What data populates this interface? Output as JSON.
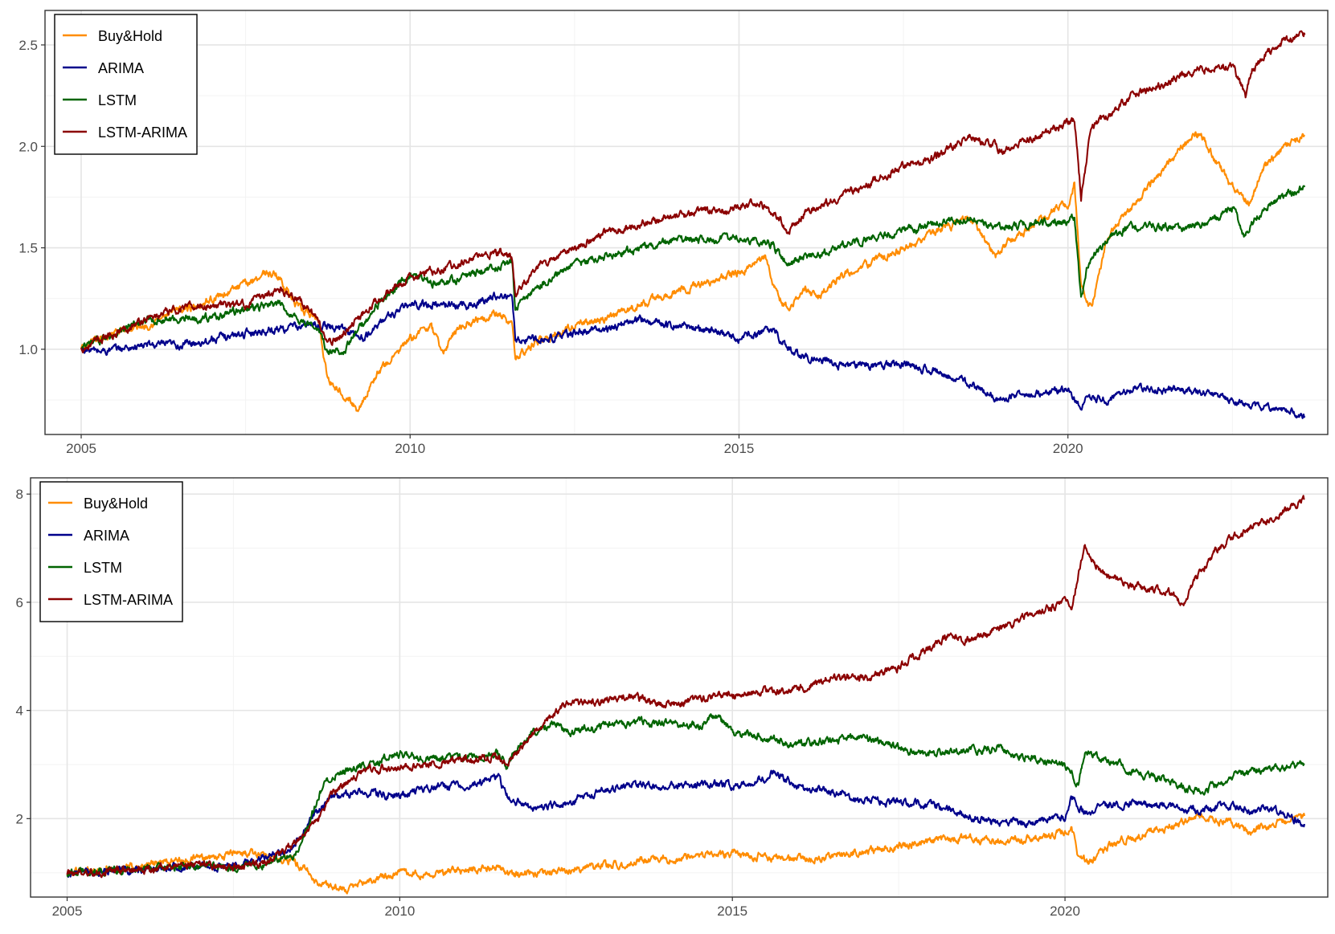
{
  "chart_data": [
    {
      "type": "line",
      "xlim": [
        2004.45,
        2023.95
      ],
      "ylim": [
        0.58,
        2.67
      ],
      "x_ticks": [
        2005,
        2010,
        2015,
        2020
      ],
      "x_tick_labels": [
        "2005",
        "2010",
        "2015",
        "2020"
      ],
      "y_ticks": [
        1.0,
        1.5,
        2.0,
        2.5
      ],
      "y_tick_labels": [
        "1.0",
        "1.5",
        "2.0",
        "2.5"
      ],
      "grid": true,
      "legend_position": "top-left",
      "series": [
        {
          "name": "Buy&Hold",
          "color": "#FF8C00",
          "x": [
            2005.0,
            2005.5,
            2006.0,
            2006.4,
            2006.6,
            2007.0,
            2007.5,
            2007.8,
            2008.0,
            2008.3,
            2008.6,
            2008.75,
            2009.0,
            2009.2,
            2009.5,
            2010.0,
            2010.3,
            2010.5,
            2010.7,
            2011.0,
            2011.3,
            2011.55,
            2011.6,
            2011.75,
            2012.0,
            2012.3,
            2012.5,
            2013.0,
            2013.5,
            2014.0,
            2014.5,
            2015.0,
            2015.4,
            2015.6,
            2015.75,
            2016.0,
            2016.2,
            2016.5,
            2017.0,
            2017.5,
            2018.0,
            2018.5,
            2018.9,
            2019.0,
            2019.5,
            2020.0,
            2020.1,
            2020.2,
            2020.35,
            2020.6,
            2021.0,
            2021.5,
            2021.9,
            2022.0,
            2022.3,
            2022.5,
            2022.75,
            2023.0,
            2023.3,
            2023.6
          ],
          "y": [
            1.0,
            1.08,
            1.12,
            1.18,
            1.2,
            1.25,
            1.32,
            1.38,
            1.36,
            1.2,
            1.15,
            0.85,
            0.78,
            0.7,
            0.88,
            1.05,
            1.12,
            0.98,
            1.1,
            1.15,
            1.18,
            1.12,
            0.95,
            1.0,
            1.05,
            1.08,
            1.12,
            1.15,
            1.22,
            1.28,
            1.33,
            1.38,
            1.45,
            1.25,
            1.2,
            1.3,
            1.25,
            1.35,
            1.42,
            1.5,
            1.58,
            1.65,
            1.45,
            1.5,
            1.62,
            1.72,
            1.82,
            1.3,
            1.2,
            1.55,
            1.72,
            1.9,
            2.05,
            2.07,
            1.9,
            1.8,
            1.72,
            1.9,
            2.0,
            2.05
          ]
        },
        {
          "name": "ARIMA",
          "color": "#00008B",
          "x": [
            2005.0,
            2005.3,
            2006.0,
            2006.5,
            2007.0,
            2007.5,
            2008.0,
            2008.5,
            2009.0,
            2009.3,
            2009.6,
            2010.0,
            2010.5,
            2011.0,
            2011.3,
            2011.55,
            2011.6,
            2012.0,
            2012.5,
            2013.0,
            2013.5,
            2014.0,
            2014.5,
            2015.0,
            2015.5,
            2015.7,
            2016.0,
            2016.3,
            2016.5,
            2017.0,
            2017.5,
            2018.0,
            2018.5,
            2018.9,
            2019.0,
            2019.5,
            2020.0,
            2020.2,
            2020.3,
            2020.6,
            2021.0,
            2021.5,
            2022.0,
            2022.5,
            2022.8,
            2023.0,
            2023.3,
            2023.6
          ],
          "y": [
            1.0,
            0.99,
            1.02,
            1.02,
            1.05,
            1.08,
            1.1,
            1.12,
            1.1,
            1.05,
            1.15,
            1.22,
            1.22,
            1.22,
            1.27,
            1.25,
            1.05,
            1.05,
            1.08,
            1.1,
            1.15,
            1.12,
            1.1,
            1.05,
            1.1,
            1.02,
            0.96,
            0.94,
            0.92,
            0.92,
            0.93,
            0.89,
            0.83,
            0.76,
            0.76,
            0.78,
            0.8,
            0.72,
            0.77,
            0.75,
            0.81,
            0.8,
            0.79,
            0.75,
            0.72,
            0.72,
            0.7,
            0.67
          ]
        },
        {
          "name": "LSTM",
          "color": "#006400",
          "x": [
            2005.0,
            2005.5,
            2006.0,
            2006.5,
            2007.0,
            2007.5,
            2008.0,
            2008.3,
            2008.6,
            2008.75,
            2009.0,
            2009.5,
            2010.0,
            2010.5,
            2011.0,
            2011.5,
            2011.55,
            2011.6,
            2012.0,
            2012.5,
            2013.0,
            2013.5,
            2014.0,
            2014.5,
            2015.0,
            2015.5,
            2015.75,
            2016.0,
            2016.5,
            2017.0,
            2017.5,
            2018.0,
            2018.5,
            2019.0,
            2019.5,
            2020.0,
            2020.1,
            2020.2,
            2020.3,
            2020.6,
            2020.8,
            2021.0,
            2021.6,
            2021.8,
            2022.0,
            2022.3,
            2022.5,
            2022.7,
            2022.8,
            2023.0,
            2023.3,
            2023.6
          ],
          "y": [
            1.0,
            1.08,
            1.14,
            1.15,
            1.16,
            1.2,
            1.22,
            1.15,
            1.1,
            0.98,
            1.0,
            1.22,
            1.36,
            1.32,
            1.38,
            1.42,
            1.44,
            1.2,
            1.32,
            1.42,
            1.46,
            1.5,
            1.53,
            1.54,
            1.55,
            1.52,
            1.42,
            1.45,
            1.5,
            1.55,
            1.58,
            1.62,
            1.65,
            1.6,
            1.62,
            1.63,
            1.65,
            1.25,
            1.42,
            1.55,
            1.58,
            1.6,
            1.6,
            1.59,
            1.62,
            1.65,
            1.7,
            1.55,
            1.62,
            1.7,
            1.76,
            1.8
          ]
        },
        {
          "name": "LSTM-ARIMA",
          "color": "#8B0000",
          "x": [
            2005.0,
            2005.5,
            2006.0,
            2006.5,
            2007.0,
            2007.5,
            2008.0,
            2008.3,
            2008.6,
            2008.75,
            2009.0,
            2009.5,
            2010.0,
            2010.5,
            2011.0,
            2011.4,
            2011.55,
            2011.6,
            2012.0,
            2012.5,
            2013.0,
            2013.5,
            2014.0,
            2014.5,
            2015.0,
            2015.3,
            2015.6,
            2015.75,
            2016.0,
            2016.3,
            2016.5,
            2017.0,
            2017.5,
            2018.0,
            2018.5,
            2018.9,
            2019.0,
            2019.5,
            2020.0,
            2020.1,
            2020.2,
            2020.35,
            2020.6,
            2021.0,
            2021.5,
            2022.0,
            2022.5,
            2022.7,
            2022.8,
            2023.0,
            2023.3,
            2023.6
          ],
          "y": [
            1.0,
            1.08,
            1.15,
            1.2,
            1.22,
            1.22,
            1.3,
            1.25,
            1.15,
            1.02,
            1.08,
            1.25,
            1.35,
            1.4,
            1.45,
            1.48,
            1.45,
            1.28,
            1.42,
            1.5,
            1.58,
            1.62,
            1.65,
            1.68,
            1.7,
            1.72,
            1.65,
            1.58,
            1.68,
            1.72,
            1.75,
            1.82,
            1.9,
            1.95,
            2.05,
            2.0,
            1.98,
            2.05,
            2.12,
            2.13,
            1.75,
            2.1,
            2.15,
            2.25,
            2.32,
            2.38,
            2.4,
            2.25,
            2.38,
            2.45,
            2.52,
            2.55
          ]
        }
      ]
    },
    {
      "type": "line",
      "xlim": [
        2004.45,
        2023.95
      ],
      "ylim": [
        0.55,
        8.3
      ],
      "x_ticks": [
        2005,
        2010,
        2015,
        2020
      ],
      "x_tick_labels": [
        "2005",
        "2010",
        "2015",
        "2020"
      ],
      "y_ticks": [
        2,
        4,
        6,
        8
      ],
      "y_tick_labels": [
        "2",
        "4",
        "6",
        "8"
      ],
      "grid": true,
      "legend_position": "top-left",
      "series": [
        {
          "name": "Buy&Hold",
          "color": "#FF8C00",
          "x": [
            2005.0,
            2005.5,
            2006.0,
            2006.5,
            2007.0,
            2007.5,
            2008.0,
            2008.4,
            2008.6,
            2008.8,
            2009.0,
            2009.2,
            2009.5,
            2010.0,
            2010.5,
            2011.0,
            2011.5,
            2011.6,
            2012.0,
            2012.5,
            2013.0,
            2013.5,
            2014.0,
            2014.5,
            2015.0,
            2015.5,
            2016.0,
            2016.5,
            2017.0,
            2017.5,
            2018.0,
            2018.5,
            2019.0,
            2019.5,
            2020.0,
            2020.1,
            2020.2,
            2020.35,
            2020.6,
            2021.0,
            2021.5,
            2022.0,
            2022.5,
            2022.8,
            2023.0,
            2023.3,
            2023.6
          ],
          "y": [
            1.0,
            1.05,
            1.12,
            1.2,
            1.28,
            1.35,
            1.32,
            1.2,
            1.05,
            0.8,
            0.75,
            0.7,
            0.85,
            1.0,
            1.0,
            1.05,
            1.1,
            0.95,
            1.0,
            1.05,
            1.12,
            1.2,
            1.25,
            1.32,
            1.35,
            1.3,
            1.25,
            1.3,
            1.4,
            1.5,
            1.6,
            1.65,
            1.55,
            1.65,
            1.75,
            1.82,
            1.3,
            1.2,
            1.45,
            1.65,
            1.85,
            2.05,
            1.95,
            1.75,
            1.85,
            1.95,
            2.05
          ]
        },
        {
          "name": "ARIMA",
          "color": "#00008B",
          "x": [
            2005.0,
            2005.5,
            2006.0,
            2006.5,
            2007.0,
            2007.5,
            2008.0,
            2008.4,
            2008.8,
            2009.0,
            2009.5,
            2010.0,
            2010.5,
            2011.0,
            2011.5,
            2011.6,
            2012.0,
            2012.5,
            2013.0,
            2013.5,
            2014.0,
            2014.5,
            2015.0,
            2015.5,
            2015.6,
            2016.0,
            2016.5,
            2017.0,
            2017.5,
            2018.0,
            2018.5,
            2019.0,
            2019.5,
            2020.0,
            2020.1,
            2020.3,
            2020.6,
            2021.0,
            2021.5,
            2022.0,
            2022.5,
            2022.8,
            2023.0,
            2023.3,
            2023.6
          ],
          "y": [
            1.0,
            1.02,
            1.05,
            1.1,
            1.12,
            1.12,
            1.3,
            1.5,
            2.2,
            2.4,
            2.5,
            2.4,
            2.6,
            2.6,
            2.75,
            2.4,
            2.2,
            2.3,
            2.5,
            2.65,
            2.6,
            2.65,
            2.6,
            2.75,
            2.85,
            2.6,
            2.5,
            2.35,
            2.3,
            2.25,
            2.05,
            1.9,
            1.95,
            2.0,
            2.4,
            2.1,
            2.25,
            2.3,
            2.25,
            2.15,
            2.25,
            2.15,
            2.2,
            2.1,
            1.9
          ]
        },
        {
          "name": "LSTM",
          "color": "#006400",
          "x": [
            2005.0,
            2005.5,
            2006.0,
            2006.5,
            2007.0,
            2007.5,
            2008.0,
            2008.4,
            2008.6,
            2008.8,
            2009.0,
            2009.5,
            2010.0,
            2010.5,
            2011.0,
            2011.5,
            2011.6,
            2012.0,
            2012.3,
            2012.5,
            2013.0,
            2013.5,
            2014.0,
            2014.5,
            2014.75,
            2015.0,
            2015.5,
            2016.0,
            2016.5,
            2017.0,
            2017.5,
            2018.0,
            2018.5,
            2019.0,
            2019.5,
            2020.0,
            2020.1,
            2020.2,
            2020.3,
            2020.6,
            2021.0,
            2021.5,
            2022.0,
            2022.3,
            2022.5,
            2023.0,
            2023.3,
            2023.6
          ],
          "y": [
            1.0,
            1.02,
            1.05,
            1.1,
            1.15,
            1.1,
            1.15,
            1.3,
            1.8,
            2.5,
            2.8,
            3.0,
            3.2,
            3.1,
            3.15,
            3.2,
            3.0,
            3.6,
            3.8,
            3.6,
            3.7,
            3.8,
            3.75,
            3.7,
            3.9,
            3.6,
            3.5,
            3.4,
            3.45,
            3.5,
            3.3,
            3.2,
            3.25,
            3.3,
            3.1,
            3.0,
            2.9,
            2.6,
            3.2,
            3.1,
            2.9,
            2.7,
            2.5,
            2.6,
            2.8,
            2.9,
            2.95,
            3.0
          ]
        },
        {
          "name": "LSTM-ARIMA",
          "color": "#8B0000",
          "x": [
            2005.0,
            2005.5,
            2006.0,
            2006.5,
            2007.0,
            2007.5,
            2008.0,
            2008.4,
            2008.6,
            2008.8,
            2009.0,
            2009.5,
            2010.0,
            2010.5,
            2011.0,
            2011.5,
            2011.6,
            2012.0,
            2012.3,
            2012.5,
            2013.0,
            2013.5,
            2014.0,
            2014.5,
            2015.0,
            2015.5,
            2016.0,
            2016.5,
            2017.0,
            2017.5,
            2018.0,
            2018.3,
            2018.5,
            2019.0,
            2019.5,
            2020.0,
            2020.1,
            2020.2,
            2020.3,
            2020.6,
            2021.0,
            2021.5,
            2021.8,
            2022.0,
            2022.3,
            2022.5,
            2023.0,
            2023.3,
            2023.6
          ],
          "y": [
            1.0,
            1.02,
            1.05,
            1.1,
            1.15,
            1.1,
            1.2,
            1.5,
            1.8,
            2.0,
            2.5,
            2.9,
            2.95,
            3.0,
            3.1,
            3.15,
            3.0,
            3.6,
            3.9,
            4.1,
            4.2,
            4.25,
            4.1,
            4.2,
            4.3,
            4.35,
            4.4,
            4.6,
            4.6,
            4.8,
            5.2,
            5.4,
            5.3,
            5.5,
            5.8,
            6.0,
            5.9,
            6.5,
            7.0,
            6.5,
            6.3,
            6.2,
            6.0,
            6.5,
            7.0,
            7.2,
            7.5,
            7.7,
            7.9
          ]
        }
      ]
    }
  ]
}
